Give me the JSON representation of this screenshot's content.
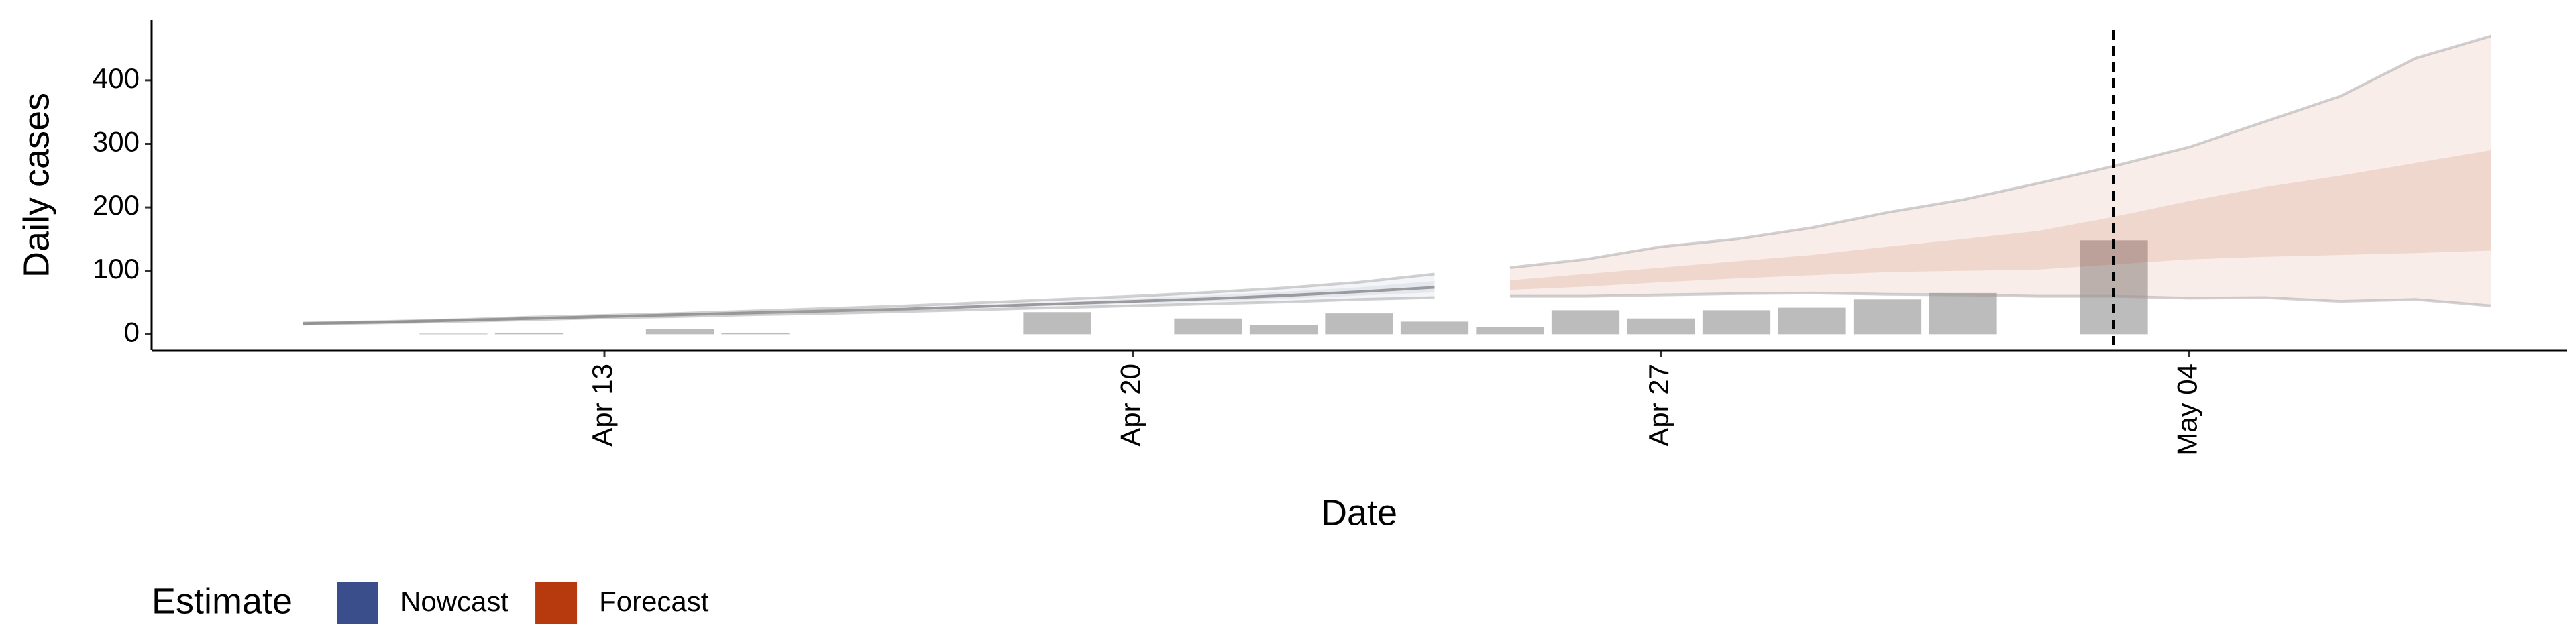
{
  "chart_data": {
    "type": "band",
    "x_label": "Date",
    "y_label": "Daily cases",
    "xlim": [
      "Apr 07",
      "May 09"
    ],
    "xticks": [
      "Apr 13",
      "Apr 20",
      "Apr 27",
      "May 04"
    ],
    "ylim": [
      -25,
      495
    ],
    "yticks": [
      0,
      100,
      200,
      300,
      400
    ],
    "vline": "May 03",
    "legend_title": "Estimate",
    "legend_position": "bottom-left",
    "bars": {
      "color": "#a6a6a6",
      "x": [
        "Apr 11",
        "Apr 12",
        "Apr 14",
        "Apr 15",
        "Apr 19",
        "Apr 21",
        "Apr 22",
        "Apr 23",
        "Apr 24",
        "Apr 25",
        "Apr 26",
        "Apr 27",
        "Apr 28",
        "Apr 29",
        "Apr 30",
        "May 01",
        "May 03"
      ],
      "values": [
        1,
        2,
        8,
        2,
        35,
        25,
        15,
        33,
        20,
        12,
        38,
        25,
        38,
        42,
        55,
        65,
        148
      ]
    },
    "series": [
      {
        "name": "Nowcast",
        "color": "#3a4e8c",
        "x": [
          "Apr 09",
          "Apr 10",
          "Apr 11",
          "Apr 12",
          "Apr 13",
          "Apr 14",
          "Apr 15",
          "Apr 16",
          "Apr 17",
          "Apr 18",
          "Apr 19",
          "Apr 20",
          "Apr 21",
          "Apr 22",
          "Apr 23",
          "Apr 24"
        ],
        "median": [
          17,
          19,
          22,
          25,
          28,
          31,
          34,
          37,
          40,
          44,
          48,
          52,
          56,
          61,
          67,
          74
        ],
        "lower_90": [
          16,
          18,
          20,
          23,
          26,
          28,
          31,
          33,
          36,
          39,
          42,
          45,
          48,
          51,
          55,
          58
        ],
        "upper_90": [
          18,
          20,
          23,
          27,
          30,
          33,
          37,
          41,
          45,
          50,
          55,
          60,
          66,
          73,
          82,
          95
        ],
        "lower_50": [
          17,
          19,
          21,
          24,
          27,
          30,
          33,
          35,
          38,
          42,
          45,
          49,
          52,
          56,
          61,
          66
        ],
        "upper_50": [
          18,
          20,
          22,
          26,
          29,
          32,
          35,
          39,
          42,
          47,
          51,
          56,
          61,
          67,
          74,
          84
        ]
      },
      {
        "name": "Forecast",
        "color": "#b73a0e",
        "x": [
          "Apr 25",
          "Apr 26",
          "Apr 27",
          "Apr 28",
          "Apr 29",
          "Apr 30",
          "May 01",
          "May 02",
          "May 03",
          "May 04",
          "May 05",
          "May 06",
          "May 07",
          "May 08"
        ],
        "lower_90": [
          60,
          60,
          62,
          64,
          65,
          63,
          62,
          60,
          60,
          57,
          58,
          52,
          55,
          45
        ],
        "upper_90": [
          105,
          118,
          138,
          150,
          168,
          192,
          212,
          238,
          265,
          295,
          335,
          375,
          435,
          470
        ],
        "lower_50": [
          70,
          75,
          82,
          88,
          93,
          98,
          100,
          102,
          110,
          118,
          122,
          125,
          128,
          132
        ],
        "upper_50": [
          85,
          95,
          105,
          115,
          125,
          138,
          150,
          163,
          185,
          210,
          232,
          250,
          270,
          290
        ]
      }
    ]
  }
}
